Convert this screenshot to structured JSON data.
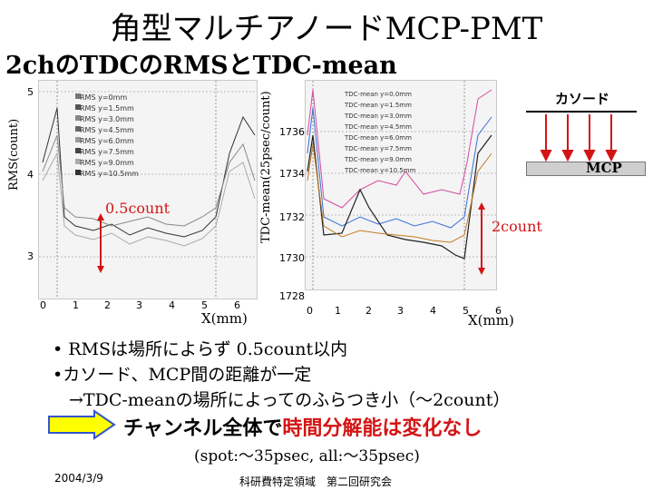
{
  "slide": {
    "title": "角型マルチアノードMCP-PMT",
    "subtitle": "2chのTDCのRMSとTDC-mean",
    "footer_date": "2004/3/9",
    "footer_event": "科研費特定領域　第二回研究会"
  },
  "left_plot": {
    "ylabel": "RMS(count)",
    "xlabel": "X(mm)",
    "yticks": [
      "5",
      "4",
      "3"
    ],
    "xticks": [
      "0",
      "1",
      "2",
      "3",
      "4",
      "5",
      "6"
    ],
    "legend": [
      "RMS y=0mm",
      "RMS y=1.5mm",
      "RMS y=3.0mm",
      "RMS y=4.5mm",
      "RMS y=6.0mm",
      "RMS y=7.5mm",
      "RMS y=9.0mm",
      "RMS y=10.5mm"
    ],
    "annotation": "0.5count"
  },
  "right_plot": {
    "ylabel": "TDC-mean(25psec/count)",
    "xlabel": "X(mm)",
    "yticks": [
      "1736",
      "1734",
      "1732",
      "1730",
      "1728"
    ],
    "xticks": [
      "0",
      "1",
      "2",
      "3",
      "4",
      "5",
      "6"
    ],
    "legend": [
      "TDC-mean y=0.0mm",
      "TDC-mean y=1.5mm",
      "TDC-mean y=3.0mm",
      "TDC-mean y=4.5mm",
      "TDC-mean y=6.0mm",
      "TDC-mean y=7.5mm",
      "TDC-mean y=9.0mm",
      "TDC-mean y=10.5mm"
    ],
    "annotation": "2count"
  },
  "diagram": {
    "cathode_label": "カソード",
    "mcp_label": "MCP"
  },
  "bullets": {
    "b1": "• RMSは場所によらず 0.5count以内",
    "b2": "•カソード、MCP間の距離が一定",
    "b3": "→TDC-meanの場所によってのふらつき小（～2count）"
  },
  "conclusion": {
    "part1": "チャンネル全体で",
    "part2": "時間分解能は変化なし"
  },
  "spot_line": "(spot:～35psec, all:～35psec)",
  "colors": {
    "accent_red": "#d41414",
    "arrow_fill": "#ffff00",
    "arrow_stroke": "#3355cc"
  }
}
